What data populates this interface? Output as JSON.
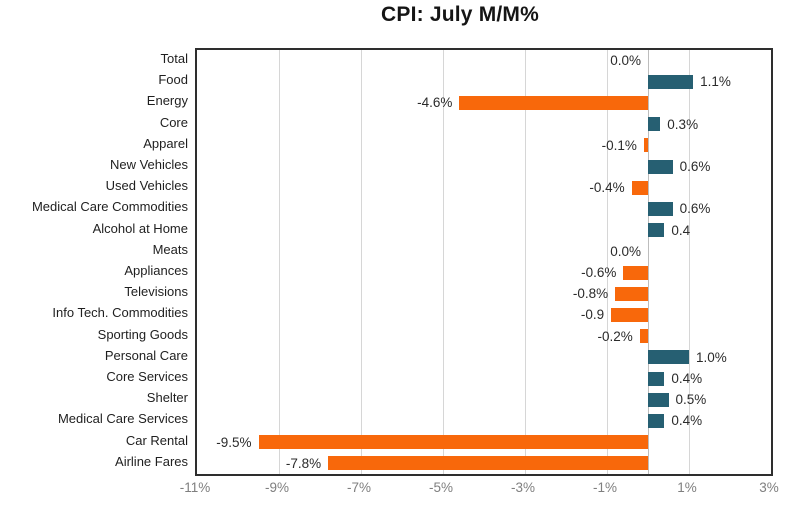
{
  "chart_data": {
    "type": "bar",
    "orientation": "horizontal",
    "title": "CPI: July M/M%",
    "categories": [
      "Total",
      "Food",
      "Energy",
      "Core",
      "Apparel",
      "New Vehicles",
      "Used Vehicles",
      "Medical Care Commodities",
      "Alcohol at Home",
      "Meats",
      "Appliances",
      "Televisions",
      "Info Tech. Commodities",
      "Sporting Goods",
      "Personal Care",
      "Core Services",
      "Shelter",
      "Medical Care Services",
      "Car Rental",
      "Airline Fares"
    ],
    "values": [
      0.0,
      1.1,
      -4.6,
      0.3,
      -0.1,
      0.6,
      -0.4,
      0.6,
      0.4,
      0.0,
      -0.6,
      -0.8,
      -0.9,
      -0.2,
      1.0,
      0.4,
      0.5,
      0.4,
      -9.5,
      -7.8
    ],
    "value_labels": [
      "0.0%",
      "1.1%",
      "-4.6%",
      "0.3%",
      "-0.1%",
      "0.6%",
      "-0.4%",
      "0.6%",
      "0.4",
      "0.0%",
      "-0.6%",
      "-0.8%",
      "-0.9",
      "-0.2%",
      "1.0%",
      "0.4%",
      "0.5%",
      "0.4%",
      "-9.5%",
      "-7.8%"
    ],
    "xlim": [
      -11,
      3
    ],
    "x_ticks": [
      {
        "value": -11,
        "label": "-11%"
      },
      {
        "value": -9,
        "label": "-9%"
      },
      {
        "value": -7,
        "label": "-7%"
      },
      {
        "value": -5,
        "label": "-5%"
      },
      {
        "value": -3,
        "label": "-3%"
      },
      {
        "value": -1,
        "label": "-1%"
      },
      {
        "value": 1,
        "label": "1%"
      },
      {
        "value": 3,
        "label": "3%"
      }
    ],
    "grid": true,
    "legend": "none",
    "colors": {
      "positive_bar": "#265f72",
      "negative_bar": "#f8680b",
      "gridline": "#d6d6d6",
      "zero_axis": "#bdbdbd",
      "plot_border": "#2e2e2e",
      "tick_text": "#7f7f7f",
      "data_label_text": "#2b2b2b",
      "category_text": "#1f1f1f"
    }
  }
}
